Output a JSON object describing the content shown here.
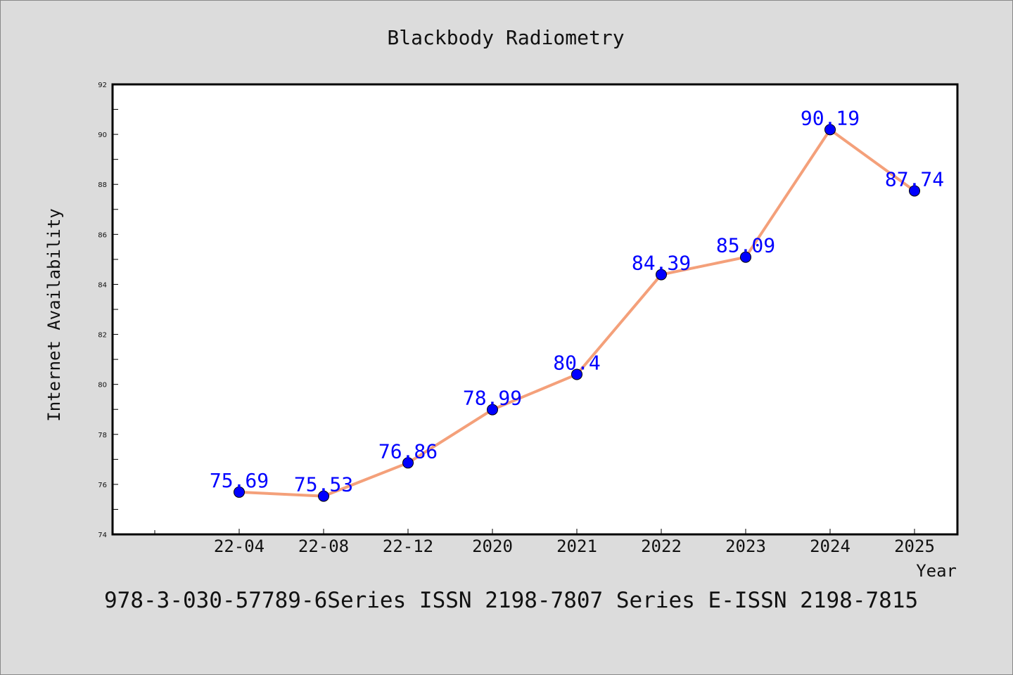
{
  "chart_data": {
    "type": "line",
    "title": "Blackbody Radiometry",
    "xlabel": "Year",
    "ylabel": "Internet Availability",
    "categories": [
      "22-04",
      "22-08",
      "22-12",
      "2020",
      "2021",
      "2022",
      "2023",
      "2024",
      "2025"
    ],
    "values": [
      75.69,
      75.53,
      76.86,
      78.99,
      80.4,
      84.39,
      85.09,
      90.19,
      87.74
    ],
    "data_labels": [
      "75.69",
      "75.53",
      "76.86",
      "78.99",
      "80.4",
      "84.39",
      "85.09",
      "90.19",
      "87.74"
    ],
    "ylim": [
      74,
      92
    ],
    "yticks": [
      "74",
      "76",
      "78",
      "80",
      "82",
      "84",
      "86",
      "88",
      "90",
      "92"
    ],
    "grid": false,
    "line_color": "#f4a07a",
    "marker_color": "#0000ff"
  },
  "footer_text": "978-3-030-57789-6Series ISSN 2198-7807 Series E-ISSN 2198-7815"
}
